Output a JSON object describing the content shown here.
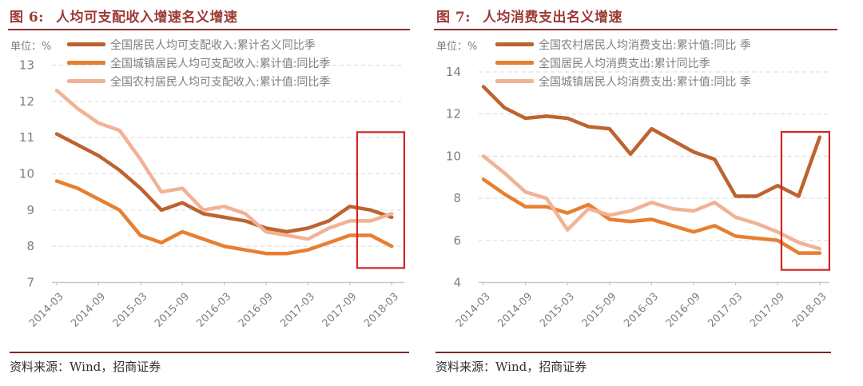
{
  "page": {
    "source_label": "资料来源：Wind，招商证券"
  },
  "chart_data": [
    {
      "type": "line",
      "figure_label": "图 6:",
      "title": "人均可支配收入增速名义增速",
      "unit_label": "单位：%",
      "x_categories": [
        "2014-03",
        "2014-06",
        "2014-09",
        "2014-12",
        "2015-03",
        "2015-06",
        "2015-09",
        "2015-12",
        "2016-03",
        "2016-06",
        "2016-09",
        "2016-12",
        "2017-03",
        "2017-06",
        "2017-09",
        "2017-12",
        "2018-03"
      ],
      "x_axis_tick_labels": [
        "2014-03",
        "2014-09",
        "2015-03",
        "2015-09",
        "2016-03",
        "2016-09",
        "2017-03",
        "2017-09",
        "2018-03"
      ],
      "ylim": [
        7,
        13
      ],
      "yticks": [
        13,
        12,
        11,
        10,
        9,
        8,
        7
      ],
      "grid": "horizontal-dashed",
      "legend_position": "top-left",
      "series": [
        {
          "name": "全国居民人均可支配收入:累计名义同比季",
          "color": "#BD6330",
          "values": [
            11.1,
            10.8,
            10.5,
            10.1,
            9.6,
            9.0,
            9.2,
            8.9,
            8.8,
            8.7,
            8.5,
            8.4,
            8.5,
            8.7,
            9.1,
            9.0,
            8.8
          ]
        },
        {
          "name": "全国城镇居民人均可支配收入:累计值:同比季",
          "color": "#E77F31",
          "values": [
            9.8,
            9.6,
            9.3,
            9.0,
            8.3,
            8.1,
            8.4,
            8.2,
            8.0,
            7.9,
            7.8,
            7.8,
            7.9,
            8.1,
            8.3,
            8.3,
            8.0
          ]
        },
        {
          "name": "全国农村居民人均可支配收入:累计值:同比季",
          "color": "#F1B295",
          "values": [
            12.3,
            11.8,
            11.4,
            11.2,
            10.4,
            9.5,
            9.6,
            9.0,
            9.1,
            8.9,
            8.4,
            8.3,
            8.2,
            8.5,
            8.7,
            8.7,
            8.9
          ]
        }
      ],
      "highlight_box": {
        "x_from_index": 14.35,
        "x_to_index": 16.6,
        "y_from": 7.4,
        "y_to": 11.15,
        "color": "#D02626"
      }
    },
    {
      "type": "line",
      "figure_label": "图 7:",
      "title": "人均消费支出名义增速",
      "unit_label": "单位：%",
      "x_categories": [
        "2014-03",
        "2014-06",
        "2014-09",
        "2014-12",
        "2015-03",
        "2015-06",
        "2015-09",
        "2015-12",
        "2016-03",
        "2016-06",
        "2016-09",
        "2016-12",
        "2017-03",
        "2017-06",
        "2017-09",
        "2017-12",
        "2018-03"
      ],
      "x_axis_tick_labels": [
        "2014-03",
        "2014-09",
        "2015-03",
        "2015-09",
        "2016-03",
        "2016-09",
        "2017-03",
        "2017-09",
        "2018-03"
      ],
      "ylim": [
        4,
        14
      ],
      "yticks": [
        14,
        12,
        10,
        8,
        6,
        4
      ],
      "grid": "horizontal-dashed",
      "legend_position": "top-left",
      "series": [
        {
          "name": "全国农村居民人均消费支出:累计值:同比 季",
          "color": "#BD6330",
          "values": [
            13.3,
            12.3,
            11.8,
            11.9,
            11.8,
            11.4,
            11.3,
            10.1,
            11.3,
            10.75,
            10.2,
            9.85,
            8.1,
            8.1,
            8.6,
            8.1,
            10.9
          ]
        },
        {
          "name": "全国居民人均消费支出:累计同比季",
          "color": "#E77F31",
          "values": [
            8.9,
            8.2,
            7.6,
            7.6,
            7.3,
            7.7,
            7.0,
            6.9,
            7.0,
            6.7,
            6.4,
            6.7,
            6.2,
            6.1,
            6.0,
            5.4,
            5.4
          ]
        },
        {
          "name": "全国城镇居民人均消费支出:累计值:同比 季",
          "color": "#F1B295",
          "values": [
            10.0,
            9.2,
            8.3,
            8.0,
            6.5,
            7.5,
            7.2,
            7.4,
            7.8,
            7.5,
            7.4,
            7.8,
            7.1,
            6.8,
            6.4,
            5.9,
            5.6
          ]
        }
      ],
      "highlight_box": {
        "x_from_index": 14.18,
        "x_to_index": 16.46,
        "y_from": 4.6,
        "y_to": 11.15,
        "color": "#D02626"
      }
    }
  ]
}
